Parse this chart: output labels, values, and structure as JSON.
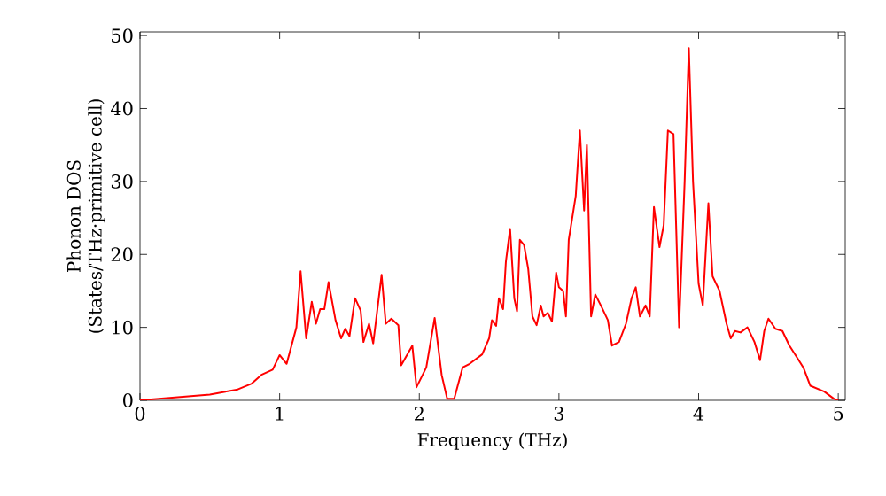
{
  "chart_data": {
    "type": "line",
    "xlabel": "Frequency (THz)",
    "ylabel": "Phonon DOS\n(States/THz·primitive cell)",
    "xlim": [
      0,
      5.05
    ],
    "ylim": [
      0,
      50.5
    ],
    "xticks": [
      0,
      1,
      2,
      3,
      4,
      5
    ],
    "yticks": [
      0,
      10,
      20,
      30,
      40,
      50
    ],
    "grid": false,
    "series": [
      {
        "color": "#ff0000",
        "x": [
          0,
          0.5,
          0.7,
          0.8,
          0.87,
          0.95,
          1.0,
          1.05,
          1.12,
          1.15,
          1.19,
          1.23,
          1.26,
          1.29,
          1.32,
          1.35,
          1.4,
          1.44,
          1.47,
          1.5,
          1.54,
          1.58,
          1.6,
          1.64,
          1.67,
          1.73,
          1.76,
          1.8,
          1.85,
          1.87,
          1.95,
          1.98,
          2.05,
          2.11,
          2.16,
          2.2,
          2.25,
          2.31,
          2.36,
          2.45,
          2.5,
          2.52,
          2.55,
          2.57,
          2.6,
          2.62,
          2.65,
          2.68,
          2.7,
          2.72,
          2.75,
          2.78,
          2.81,
          2.84,
          2.87,
          2.89,
          2.92,
          2.95,
          2.98,
          3.0,
          3.03,
          3.05,
          3.07,
          3.12,
          3.15,
          3.18,
          3.2,
          3.23,
          3.26,
          3.3,
          3.35,
          3.38,
          3.43,
          3.48,
          3.52,
          3.55,
          3.58,
          3.62,
          3.65,
          3.68,
          3.72,
          3.75,
          3.78,
          3.82,
          3.86,
          3.9,
          3.93,
          3.96,
          4.0,
          4.03,
          4.07,
          4.1,
          4.15,
          4.2,
          4.23,
          4.26,
          4.3,
          4.35,
          4.4,
          4.44,
          4.47,
          4.5,
          4.55,
          4.6,
          4.65,
          4.7,
          4.75,
          4.8,
          4.9,
          4.97,
          5.0
        ],
        "values": [
          0,
          0.8,
          1.5,
          2.3,
          3.5,
          4.2,
          6.2,
          5.0,
          10,
          17.7,
          8.5,
          13.5,
          10.5,
          12.5,
          12.5,
          16.2,
          11,
          8.5,
          9.8,
          8.8,
          14,
          12.3,
          8,
          10.5,
          7.8,
          17.2,
          10.5,
          11.2,
          10.3,
          4.8,
          7.5,
          1.8,
          4.5,
          11.3,
          3.5,
          0.2,
          0.2,
          4.5,
          5,
          6.3,
          8.5,
          11,
          10.2,
          14,
          12.5,
          19,
          23.5,
          14,
          12.2,
          22,
          21.3,
          18,
          11.5,
          10.3,
          13,
          11.5,
          12,
          10.8,
          17.5,
          15.5,
          15,
          11.5,
          22,
          28,
          37,
          26,
          35,
          11.5,
          14.5,
          13,
          11,
          7.5,
          8,
          10.5,
          14,
          15.5,
          11.5,
          13,
          11.5,
          26.5,
          21,
          24,
          37,
          36.5,
          10,
          30,
          48.3,
          30,
          16,
          13,
          27,
          17,
          15,
          10.5,
          8.5,
          9.5,
          9.3,
          10,
          8,
          5.5,
          9.5,
          11.2,
          9.8,
          9.5,
          7.5,
          6,
          4.5,
          2,
          1.2,
          0.2,
          0
        ]
      }
    ]
  }
}
